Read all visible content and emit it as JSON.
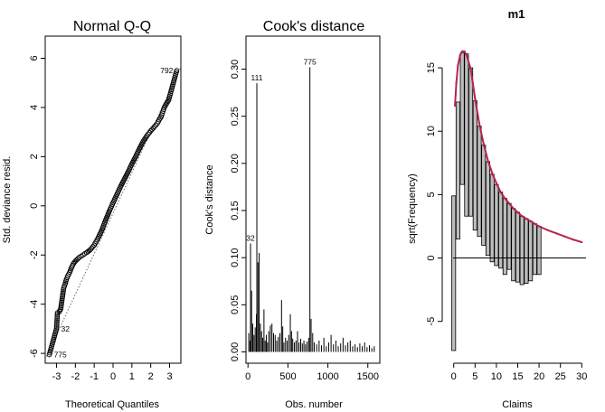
{
  "chart_data": [
    {
      "type": "scatter",
      "title": "Normal Q-Q",
      "xlabel": "Theoretical Quantiles",
      "ylabel": "Std. deviance resid.",
      "xlim": [
        -3.6,
        3.6
      ],
      "ylim": [
        -6.4,
        6.9
      ],
      "xticks": [
        -3,
        -2,
        -1,
        0,
        1,
        2,
        3
      ],
      "yticks": [
        -6,
        -4,
        -2,
        0,
        2,
        4,
        6
      ],
      "tick_labels_x": [
        "-3",
        "-2",
        "-1",
        "0",
        "1",
        "2",
        "3"
      ],
      "tick_labels_y": [
        "-6",
        "-4",
        "-2",
        "0",
        "2",
        "4",
        "6"
      ],
      "reference_line": {
        "intercept": -0.3,
        "slope": 1.65
      },
      "points": [
        [
          -3.38,
          -6.05
        ],
        [
          -3.0,
          -5.0
        ],
        [
          -2.95,
          -4.35
        ],
        [
          -2.85,
          -4.3
        ],
        [
          -2.78,
          -4.2
        ],
        [
          -2.62,
          -3.35
        ],
        [
          -2.55,
          -3.2
        ],
        [
          -2.48,
          -3.0
        ],
        [
          -2.4,
          -2.85
        ],
        [
          -2.3,
          -2.7
        ],
        [
          -2.2,
          -2.5
        ],
        [
          -2.1,
          -2.35
        ],
        [
          -2.0,
          -2.25
        ],
        [
          -1.8,
          -2.1
        ],
        [
          -1.6,
          -2.0
        ],
        [
          -1.4,
          -1.9
        ],
        [
          -1.2,
          -1.78
        ],
        [
          -1.0,
          -1.6
        ],
        [
          -0.8,
          -1.32
        ],
        [
          -0.6,
          -1.0
        ],
        [
          -0.4,
          -0.6
        ],
        [
          -0.2,
          -0.22
        ],
        [
          0.0,
          0.12
        ],
        [
          0.2,
          0.45
        ],
        [
          0.4,
          0.78
        ],
        [
          0.6,
          1.08
        ],
        [
          0.8,
          1.38
        ],
        [
          1.0,
          1.7
        ],
        [
          1.2,
          2.0
        ],
        [
          1.4,
          2.32
        ],
        [
          1.6,
          2.62
        ],
        [
          1.8,
          2.85
        ],
        [
          2.0,
          3.05
        ],
        [
          2.2,
          3.22
        ],
        [
          2.35,
          3.35
        ],
        [
          2.45,
          3.5
        ],
        [
          2.55,
          3.62
        ],
        [
          2.72,
          4.0
        ],
        [
          2.95,
          4.3
        ],
        [
          3.38,
          5.5
        ]
      ],
      "point_labels": [
        {
          "id": "792",
          "x": 3.38,
          "y": 5.5
        },
        {
          "id": "32",
          "x": -3.0,
          "y": -5.0
        },
        {
          "id": "775",
          "x": -3.38,
          "y": -6.05
        }
      ]
    },
    {
      "type": "bar",
      "title": "Cook's distance",
      "xlabel": "Obs. number",
      "ylabel": "Cook's distance",
      "xlim": [
        -25,
        1650
      ],
      "ylim": [
        -0.012,
        0.335
      ],
      "xticks": [
        0,
        500,
        1000,
        1500
      ],
      "yticks": [
        0.0,
        0.05,
        0.1,
        0.15,
        0.2,
        0.25,
        0.3
      ],
      "tick_labels_x": [
        "0",
        "500",
        "1000",
        "1500"
      ],
      "tick_labels_y": [
        "0.00",
        "0.05",
        "0.10",
        "0.15",
        "0.20",
        "0.25",
        "0.30"
      ],
      "points": [
        [
          10,
          0.02
        ],
        [
          25,
          0.012
        ],
        [
          32,
          0.115
        ],
        [
          45,
          0.065
        ],
        [
          60,
          0.03
        ],
        [
          75,
          0.018
        ],
        [
          90,
          0.026
        ],
        [
          105,
          0.04
        ],
        [
          111,
          0.285
        ],
        [
          125,
          0.095
        ],
        [
          140,
          0.105
        ],
        [
          155,
          0.03
        ],
        [
          170,
          0.022
        ],
        [
          185,
          0.015
        ],
        [
          200,
          0.045
        ],
        [
          215,
          0.012
        ],
        [
          230,
          0.018
        ],
        [
          245,
          0.01
        ],
        [
          260,
          0.022
        ],
        [
          280,
          0.028
        ],
        [
          300,
          0.03
        ],
        [
          320,
          0.02
        ],
        [
          340,
          0.018
        ],
        [
          360,
          0.012
        ],
        [
          380,
          0.016
        ],
        [
          400,
          0.02
        ],
        [
          420,
          0.055
        ],
        [
          435,
          0.027
        ],
        [
          450,
          0.01
        ],
        [
          470,
          0.015
        ],
        [
          490,
          0.012
        ],
        [
          510,
          0.018
        ],
        [
          530,
          0.04
        ],
        [
          545,
          0.022
        ],
        [
          560,
          0.014
        ],
        [
          580,
          0.01
        ],
        [
          600,
          0.012
        ],
        [
          620,
          0.022
        ],
        [
          640,
          0.01
        ],
        [
          660,
          0.014
        ],
        [
          680,
          0.009
        ],
        [
          700,
          0.012
        ],
        [
          720,
          0.008
        ],
        [
          740,
          0.011
        ],
        [
          760,
          0.015
        ],
        [
          775,
          0.302
        ],
        [
          790,
          0.035
        ],
        [
          810,
          0.02
        ],
        [
          830,
          0.01
        ],
        [
          860,
          0.008
        ],
        [
          890,
          0.012
        ],
        [
          920,
          0.007
        ],
        [
          950,
          0.015
        ],
        [
          980,
          0.006
        ],
        [
          1010,
          0.01
        ],
        [
          1040,
          0.018
        ],
        [
          1070,
          0.008
        ],
        [
          1100,
          0.012
        ],
        [
          1130,
          0.006
        ],
        [
          1160,
          0.009
        ],
        [
          1190,
          0.015
        ],
        [
          1220,
          0.007
        ],
        [
          1250,
          0.01
        ],
        [
          1280,
          0.012
        ],
        [
          1310,
          0.006
        ],
        [
          1340,
          0.008
        ],
        [
          1370,
          0.005
        ],
        [
          1400,
          0.009
        ],
        [
          1430,
          0.006
        ],
        [
          1460,
          0.01
        ],
        [
          1490,
          0.005
        ],
        [
          1520,
          0.007
        ],
        [
          1550,
          0.004
        ],
        [
          1580,
          0.006
        ]
      ],
      "point_labels": [
        {
          "id": "775",
          "x": 775,
          "y": 0.302
        },
        {
          "id": "111",
          "x": 111,
          "y": 0.285
        },
        {
          "id": "32",
          "x": 32,
          "y": 0.115
        }
      ]
    },
    {
      "type": "bar",
      "title": "m1",
      "xlabel": "Claims",
      "ylabel": "sqrt(Frequency)",
      "xlim": [
        -1,
        31
      ],
      "ylim": [
        -8.3,
        17.5
      ],
      "xticks": [
        0,
        5,
        10,
        15,
        20,
        25,
        30
      ],
      "yticks": [
        -5,
        0,
        5,
        10,
        15
      ],
      "tick_labels_x": [
        "0",
        "5",
        "10",
        "15",
        "20",
        "25",
        "30"
      ],
      "tick_labels_y": [
        "-5",
        "0",
        "5",
        "10",
        "15"
      ],
      "hanging_bars": [
        {
          "x": 0,
          "top": 4.9,
          "bottom": -7.3
        },
        {
          "x": 1,
          "top": 12.3,
          "bottom": 1.5
        },
        {
          "x": 2,
          "top": 16.2,
          "bottom": 5.8
        },
        {
          "x": 3,
          "top": 16.1,
          "bottom": 3.3
        },
        {
          "x": 4,
          "top": 15.0,
          "bottom": 3.3
        },
        {
          "x": 5,
          "top": 12.4,
          "bottom": 2.2
        },
        {
          "x": 6,
          "top": 10.4,
          "bottom": 1.7
        },
        {
          "x": 7,
          "top": 8.9,
          "bottom": 1.0
        },
        {
          "x": 8,
          "top": 7.6,
          "bottom": 0.2
        },
        {
          "x": 9,
          "top": 6.6,
          "bottom": -0.3
        },
        {
          "x": 10,
          "top": 5.8,
          "bottom": -0.6
        },
        {
          "x": 11,
          "top": 5.2,
          "bottom": -0.8
        },
        {
          "x": 12,
          "top": 4.7,
          "bottom": -1.3
        },
        {
          "x": 13,
          "top": 4.3,
          "bottom": -0.9
        },
        {
          "x": 14,
          "top": 3.9,
          "bottom": -1.8
        },
        {
          "x": 15,
          "top": 3.6,
          "bottom": -1.9
        },
        {
          "x": 16,
          "top": 3.3,
          "bottom": -2.1
        },
        {
          "x": 17,
          "top": 3.1,
          "bottom": -2.0
        },
        {
          "x": 18,
          "top": 2.9,
          "bottom": -1.8
        },
        {
          "x": 19,
          "top": 2.7,
          "bottom": -1.3
        },
        {
          "x": 20,
          "top": 2.5,
          "bottom": -1.3
        }
      ],
      "fitted_curve": [
        [
          0.3,
          12.0
        ],
        [
          0.6,
          13.8
        ],
        [
          1.0,
          15.2
        ],
        [
          1.5,
          16.0
        ],
        [
          2.0,
          16.3
        ],
        [
          2.5,
          16.3
        ],
        [
          3.0,
          16.0
        ],
        [
          4.0,
          14.9
        ],
        [
          5.0,
          12.6
        ],
        [
          6.0,
          10.6
        ],
        [
          7.0,
          9.0
        ],
        [
          8.0,
          7.7
        ],
        [
          9.0,
          6.7
        ],
        [
          10.0,
          5.9
        ],
        [
          11.0,
          5.2
        ],
        [
          12.0,
          4.7
        ],
        [
          13.0,
          4.3
        ],
        [
          14.0,
          3.9
        ],
        [
          15.0,
          3.6
        ],
        [
          16.0,
          3.3
        ],
        [
          17.0,
          3.1
        ],
        [
          18.0,
          2.9
        ],
        [
          19.0,
          2.7
        ],
        [
          20.0,
          2.5
        ],
        [
          22.0,
          2.2
        ],
        [
          24.0,
          1.95
        ],
        [
          26.0,
          1.7
        ],
        [
          28.0,
          1.45
        ],
        [
          30.0,
          1.25
        ]
      ],
      "reference_line_y": 0,
      "colors": {
        "curve": "#b5264a",
        "bars": "#bdbdbd"
      }
    }
  ]
}
